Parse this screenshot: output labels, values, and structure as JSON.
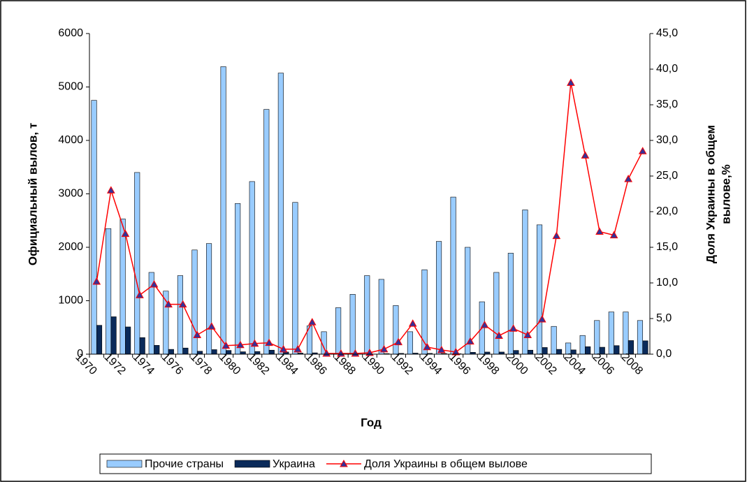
{
  "chart_data": {
    "type": "bar-line",
    "x_label": "Год",
    "y_label": "Официальный вылов, т",
    "y2_label_lines": [
      "Доля Украины в общем",
      "вылове,%"
    ],
    "categories": [
      "1970",
      null,
      "1972",
      null,
      "1974",
      null,
      "1976",
      null,
      "1978",
      null,
      "1980",
      null,
      "1982",
      null,
      "1984",
      null,
      "1986",
      null,
      "1988",
      null,
      "1990",
      null,
      "1992",
      null,
      "1994",
      null,
      "1996",
      null,
      "1998",
      null,
      "2000",
      null,
      "2002",
      null,
      "2004",
      null,
      "2006",
      null,
      "2008"
    ],
    "series": [
      {
        "name": "Прочие страны",
        "type": "bar",
        "color": "#99ccff",
        "values": [
          4750,
          2350,
          2530,
          3400,
          1530,
          1180,
          1470,
          1950,
          2070,
          5380,
          2820,
          3230,
          4580,
          5260,
          2840,
          530,
          420,
          870,
          1120,
          1470,
          1400,
          910,
          420,
          1580,
          2110,
          2940,
          2000,
          980,
          1530,
          1890,
          2700,
          2420,
          520,
          210,
          350,
          630,
          790,
          790,
          630
        ]
      },
      {
        "name": "Украина",
        "type": "bar",
        "color": "#0a2a5a",
        "values": [
          540,
          700,
          510,
          310,
          165,
          90,
          115,
          55,
          85,
          70,
          45,
          50,
          75,
          40,
          20,
          25,
          1,
          1,
          1,
          3,
          10,
          15,
          20,
          15,
          12,
          8,
          35,
          40,
          40,
          70,
          75,
          125,
          90,
          80,
          140,
          130,
          160,
          255,
          250
        ]
      },
      {
        "name": "Доля Украины в общем вылове",
        "type": "line",
        "axis": "y2",
        "color": "#ff0000",
        "marker_color": "#333399",
        "values": [
          10.2,
          23.0,
          16.9,
          8.3,
          9.8,
          7.0,
          7.0,
          2.7,
          3.9,
          1.2,
          1.3,
          1.5,
          1.6,
          0.7,
          0.7,
          4.5,
          0.1,
          0.1,
          0.1,
          0.2,
          0.7,
          1.7,
          4.3,
          1.0,
          0.6,
          0.3,
          1.8,
          4.1,
          2.6,
          3.6,
          2.7,
          4.9,
          16.6,
          38.1,
          27.9,
          17.2,
          16.7,
          24.6,
          28.5
        ]
      }
    ],
    "ylim": [
      0,
      6000
    ],
    "yticks": [
      0,
      1000,
      2000,
      3000,
      4000,
      5000,
      6000
    ],
    "y2lim": [
      0,
      45
    ],
    "y2ticks": [
      {
        "value": 0,
        "label": "0,0"
      },
      {
        "value": 5,
        "label": "5,0"
      },
      {
        "value": 10,
        "label": "10,0"
      },
      {
        "value": 15,
        "label": "15,0"
      },
      {
        "value": 20,
        "label": "20,0"
      },
      {
        "value": 25,
        "label": "25,0"
      },
      {
        "value": 30,
        "label": "30,0"
      },
      {
        "value": 35,
        "label": "35,0"
      },
      {
        "value": 40,
        "label": "40,0"
      },
      {
        "value": 45,
        "label": "45,0"
      }
    ],
    "legend": "bottom"
  }
}
